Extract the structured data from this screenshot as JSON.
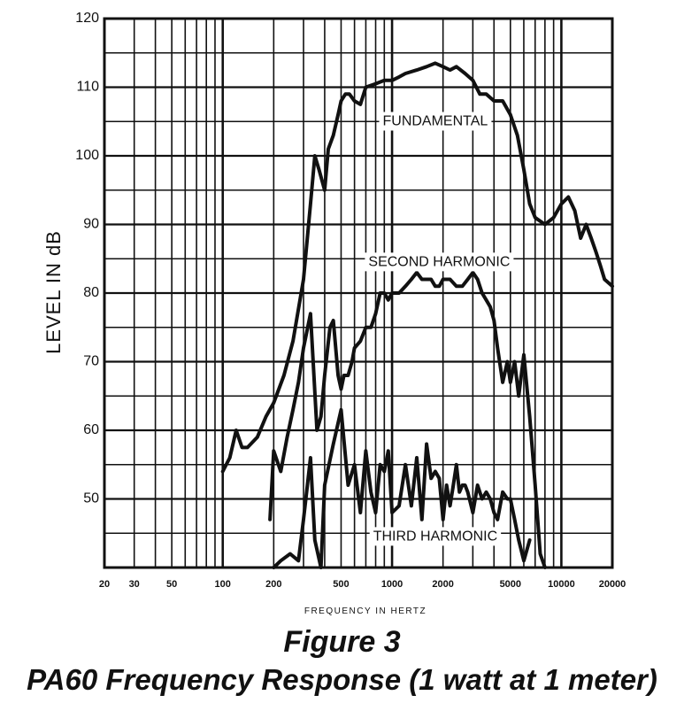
{
  "chart_data": {
    "type": "line",
    "title": "PA60 Frequency Response (1 watt at 1 meter)",
    "figure_label": "Figure 3",
    "xlabel": "FREQUENCY IN HERTZ",
    "ylabel": "LEVEL IN dB",
    "x_scale": "log",
    "xlim": [
      20,
      20000
    ],
    "ylim": [
      40,
      120
    ],
    "grid": true,
    "x_ticks": [
      20,
      30,
      50,
      100,
      200,
      500,
      1000,
      2000,
      5000,
      10000,
      20000
    ],
    "x_tick_labels": [
      "20",
      "30",
      "50",
      "100",
      "200",
      "500",
      "1000",
      "2000",
      "5000",
      "10000",
      "20000"
    ],
    "y_ticks": [
      50,
      60,
      70,
      80,
      90,
      100,
      110,
      120
    ],
    "y_tick_labels": [
      "50",
      "60",
      "70",
      "80",
      "90",
      "100",
      "110",
      "120"
    ],
    "annotations": [
      {
        "text": "FUNDAMENTAL",
        "x": 1800,
        "y": 105
      },
      {
        "text": "SECOND HARMONIC",
        "x": 1900,
        "y": 84.5
      },
      {
        "text": "THIRD HARMONIC",
        "x": 1800,
        "y": 44.5
      }
    ],
    "series": [
      {
        "id": "fundamental",
        "color": "#111111",
        "x": [
          100,
          110,
          120,
          130,
          140,
          160,
          180,
          200,
          230,
          260,
          300,
          330,
          350,
          370,
          400,
          420,
          450,
          480,
          500,
          530,
          560,
          600,
          650,
          700,
          800,
          900,
          1000,
          1100,
          1200,
          1400,
          1600,
          1800,
          2000,
          2200,
          2400,
          2700,
          3000,
          3300,
          3600,
          4000,
          4500,
          5000,
          5500,
          6000,
          6500,
          7000,
          8000,
          9000,
          10000,
          11000,
          12000,
          13000,
          14000,
          15000,
          16000,
          17000,
          18000,
          20000
        ],
        "y": [
          54,
          56,
          60,
          57.5,
          57.5,
          59,
          62,
          64,
          68,
          73,
          82,
          93,
          100,
          98,
          95,
          101,
          103,
          106,
          108,
          109,
          109,
          108,
          107.5,
          110,
          110.5,
          111,
          111,
          111.5,
          112,
          112.5,
          113,
          113.5,
          113,
          112.5,
          113,
          112,
          111,
          109,
          109,
          108,
          108,
          106,
          103,
          98,
          93,
          91,
          90,
          91,
          93,
          94,
          92,
          88,
          90,
          88,
          86,
          84,
          82,
          81
        ]
      },
      {
        "id": "second_harmonic",
        "color": "#111111",
        "x": [
          190,
          200,
          220,
          240,
          260,
          280,
          300,
          330,
          360,
          380,
          400,
          430,
          450,
          480,
          500,
          520,
          550,
          580,
          600,
          650,
          700,
          750,
          800,
          850,
          900,
          950,
          1000,
          1100,
          1200,
          1300,
          1400,
          1500,
          1600,
          1700,
          1800,
          1900,
          2000,
          2200,
          2400,
          2600,
          2800,
          3000,
          3200,
          3400,
          3600,
          3800,
          4000,
          4200,
          4500,
          4800,
          5000,
          5300,
          5600,
          6000,
          6500,
          7000,
          7500,
          8000
        ],
        "y": [
          47,
          57,
          54,
          59,
          63,
          67,
          72,
          77,
          60,
          62,
          68,
          75,
          76,
          68,
          66,
          68,
          68,
          70,
          72,
          73,
          75,
          75,
          77,
          80,
          80,
          79,
          80,
          80,
          81,
          82,
          83,
          82,
          82,
          82,
          81,
          81,
          82,
          82,
          81,
          81,
          82,
          83,
          82,
          80,
          79,
          78,
          76,
          72,
          67,
          70,
          67,
          70,
          65,
          71,
          62,
          52,
          42,
          40
        ]
      },
      {
        "id": "third_harmonic",
        "color": "#111111",
        "x": [
          200,
          220,
          250,
          280,
          300,
          330,
          350,
          380,
          400,
          450,
          500,
          550,
          600,
          650,
          700,
          750,
          800,
          850,
          900,
          950,
          1000,
          1100,
          1200,
          1300,
          1400,
          1500,
          1600,
          1700,
          1800,
          1900,
          2000,
          2100,
          2200,
          2300,
          2400,
          2500,
          2600,
          2700,
          2800,
          3000,
          3200,
          3400,
          3600,
          3800,
          4000,
          4200,
          4500,
          4800,
          5000,
          5300,
          5600,
          6000,
          6500
        ],
        "y": [
          40,
          41,
          42,
          41,
          47,
          56,
          44,
          40,
          52,
          58,
          63,
          52,
          55,
          48,
          57,
          51,
          48,
          55,
          54,
          57,
          48,
          49,
          55,
          49,
          56,
          47,
          58,
          53,
          54,
          53,
          47,
          52,
          49,
          52,
          55,
          51,
          52,
          52,
          51,
          48,
          52,
          50,
          51,
          50,
          48,
          47,
          51,
          50,
          50,
          47,
          44,
          41,
          44
        ]
      }
    ]
  }
}
